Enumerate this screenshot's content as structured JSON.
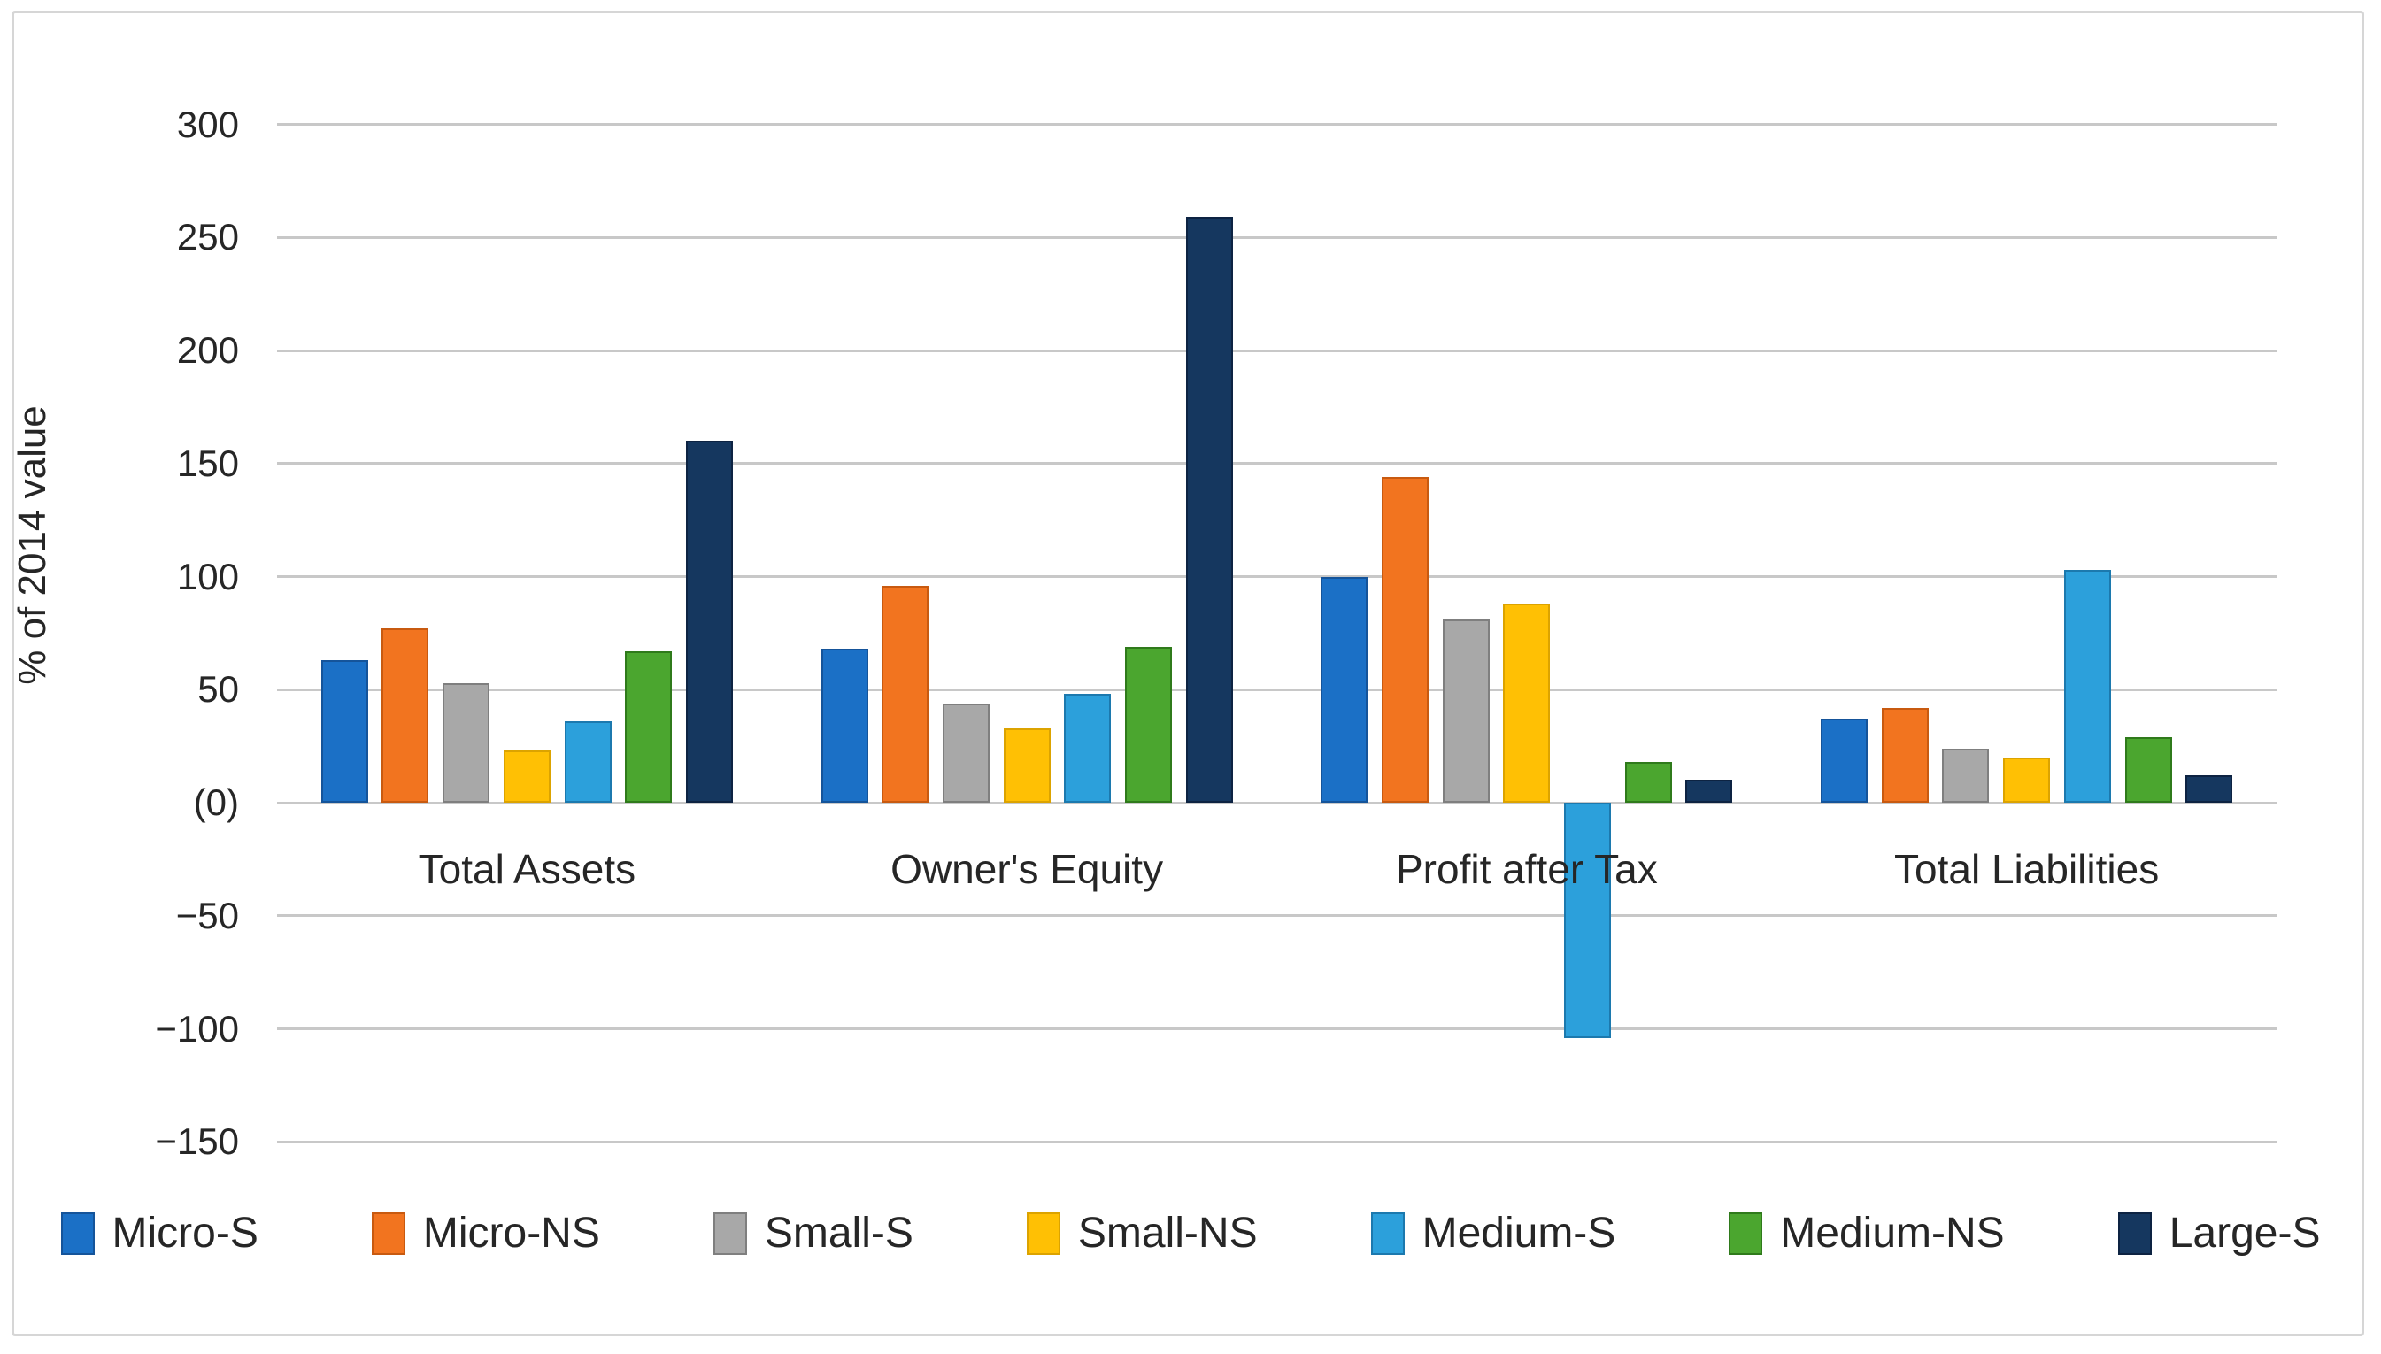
{
  "figure": {
    "background": "#ffffff",
    "border_color": "#d6d6d6"
  },
  "chart_data": {
    "type": "bar",
    "title": "",
    "categories": [
      "Total Assets",
      "Owner's Equity",
      "Profit after Tax",
      "Total Liabilities"
    ],
    "series": [
      {
        "name": "Micro-S",
        "color": "#1b70c6",
        "border_color": "#15549a",
        "values": [
          63,
          68,
          100,
          37
        ]
      },
      {
        "name": "Micro-NS",
        "color": "#f2741f",
        "border_color": "#c85a10",
        "values": [
          77,
          96,
          144,
          42
        ]
      },
      {
        "name": "Small-S",
        "color": "#a8a8a8",
        "border_color": "#7f7f7f",
        "values": [
          53,
          44,
          81,
          24
        ]
      },
      {
        "name": "Small-NS",
        "color": "#ffc004",
        "border_color": "#dca300",
        "values": [
          23,
          33,
          88,
          20
        ]
      },
      {
        "name": "Medium-S",
        "color": "#2ca0db",
        "border_color": "#1c79ae",
        "values": [
          36,
          48,
          -104,
          103
        ]
      },
      {
        "name": "Medium-NS",
        "color": "#4ba62f",
        "border_color": "#2f7a1b",
        "values": [
          67,
          69,
          18,
          29
        ]
      },
      {
        "name": "Large-S",
        "color": "#15375f",
        "border_color": "#0d2342",
        "values": [
          160,
          259,
          10,
          12
        ]
      }
    ],
    "xlabel": "",
    "ylabel": "% of 2014 value",
    "ylim": [
      -150,
      300
    ],
    "ytick_step": 50,
    "ytick_labels": [
      "300",
      "250",
      "200",
      "150",
      "100",
      "50",
      "(0)",
      "−50",
      "−100",
      "−150"
    ],
    "zero_tick_label": "(0)",
    "grid": true,
    "gridline_color": "#c8c8c8",
    "legend_position": "bottom"
  }
}
